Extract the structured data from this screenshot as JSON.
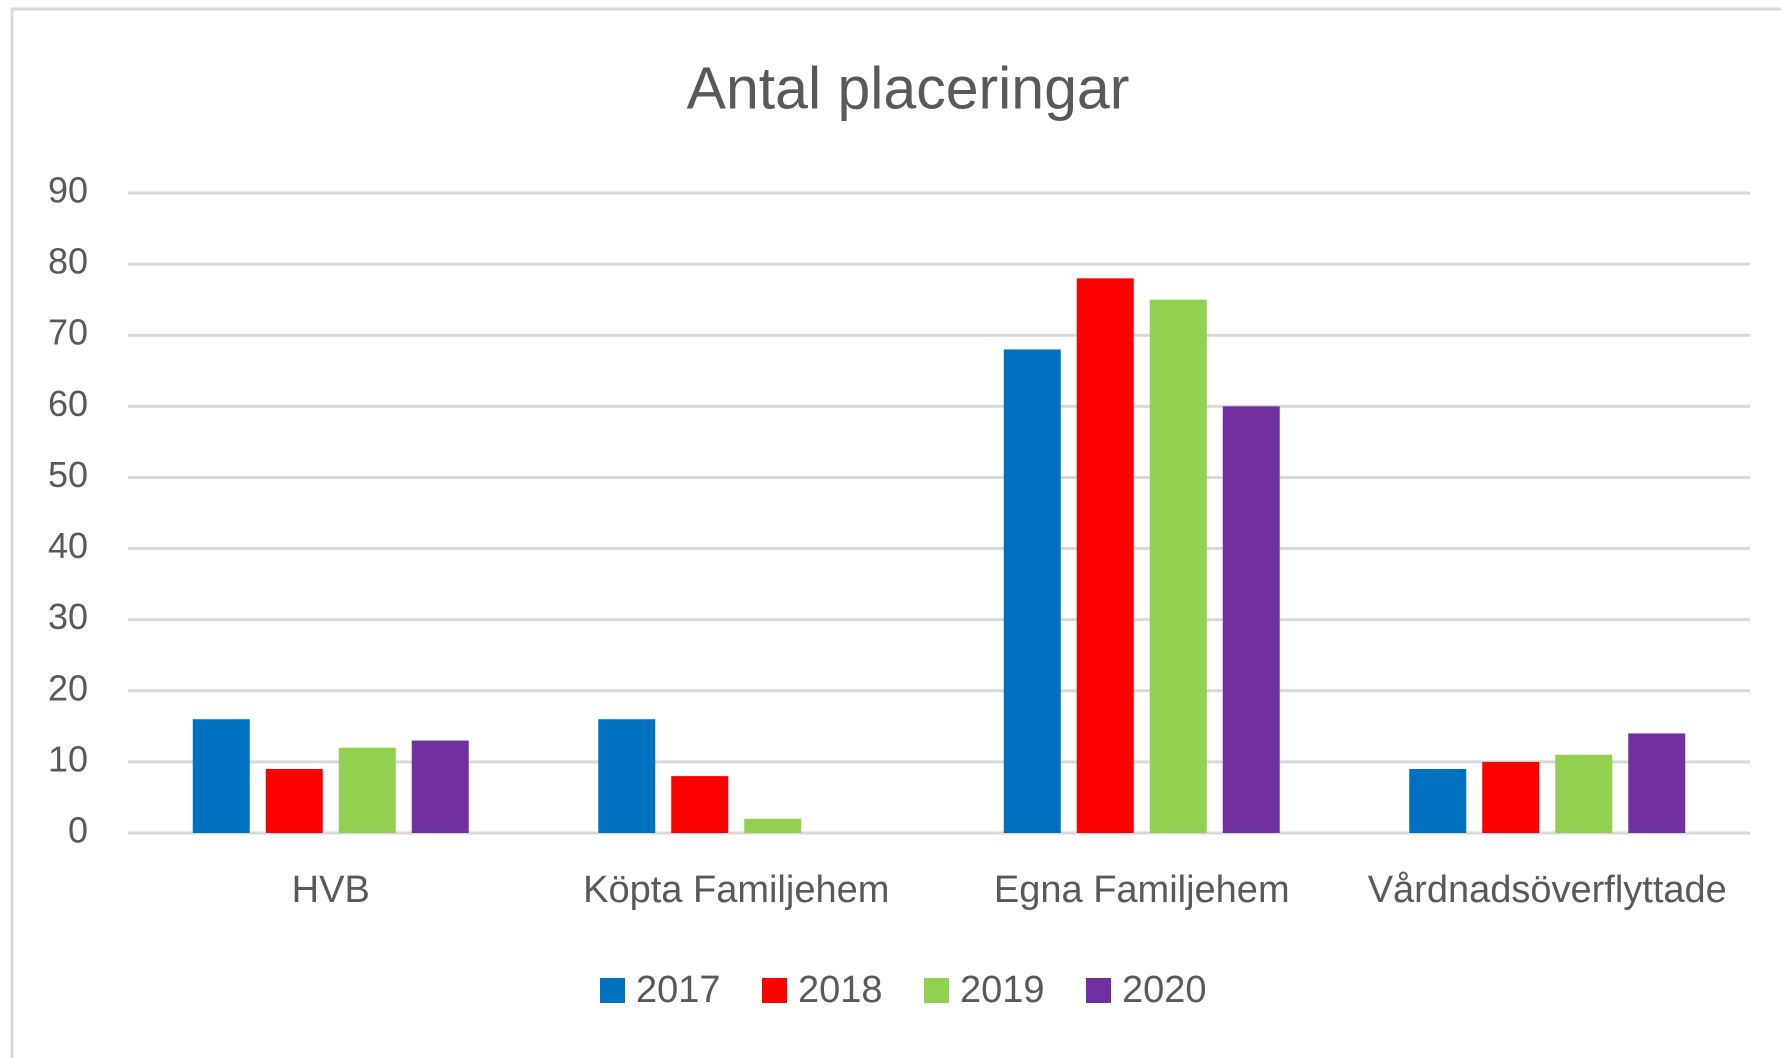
{
  "chart_data": {
    "type": "bar",
    "title": "Antal placeringar",
    "categories": [
      "HVB",
      "Köpta Familjehem",
      "Egna Familjehem",
      "Vårdnadsöverflyttade"
    ],
    "series": [
      {
        "name": "2017",
        "color": "#0070c0",
        "values": [
          16,
          16,
          68,
          9
        ]
      },
      {
        "name": "2018",
        "color": "#ff0000",
        "values": [
          9,
          8,
          78,
          10
        ]
      },
      {
        "name": "2019",
        "color": "#92d050",
        "values": [
          12,
          2,
          75,
          11
        ]
      },
      {
        "name": "2020",
        "color": "#7030a0",
        "values": [
          13,
          0,
          60,
          14
        ]
      }
    ],
    "ylim": [
      0,
      90
    ],
    "yticks": [
      0,
      10,
      20,
      30,
      40,
      50,
      60,
      70,
      80,
      90
    ],
    "grid": true,
    "legend": "bottom"
  }
}
